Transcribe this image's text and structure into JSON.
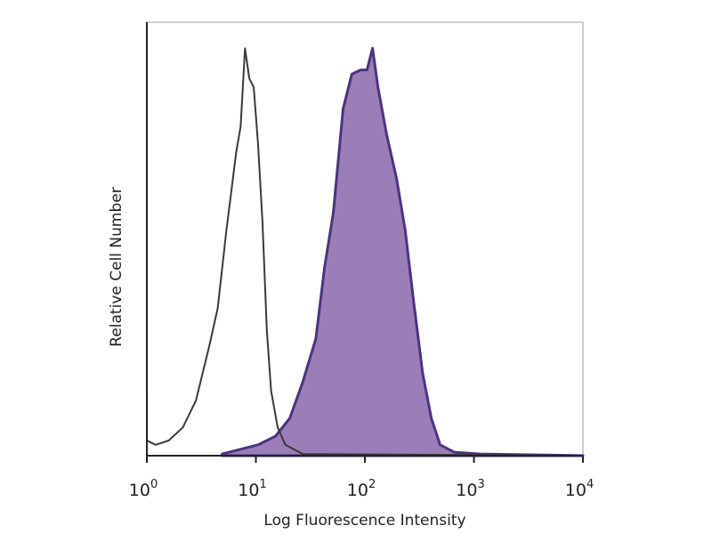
{
  "chart_data": {
    "type": "area",
    "title": "",
    "xlabel": "Log Fluorescence Intensity",
    "ylabel": "Relative Cell Number",
    "x_scale": "log",
    "xlim": [
      1,
      10000
    ],
    "ylim": [
      0,
      100
    ],
    "grid": false,
    "x_ticks": [
      {
        "base": "10",
        "exp": "0",
        "value": 1
      },
      {
        "base": "10",
        "exp": "1",
        "value": 10
      },
      {
        "base": "10",
        "exp": "2",
        "value": 100
      },
      {
        "base": "10",
        "exp": "3",
        "value": 1000
      },
      {
        "base": "10",
        "exp": "4",
        "value": 10000
      }
    ],
    "series": [
      {
        "style": "outline",
        "color": "#3a3a3a",
        "x_log10": [
          0,
          0.001,
          0.08,
          0.2,
          0.33,
          0.45,
          0.57,
          0.65,
          0.73,
          0.82,
          0.86,
          0.9,
          0.94,
          0.98,
          1.02,
          1.06,
          1.1,
          1.14,
          1.2,
          1.27,
          1.43,
          4
        ],
        "y": [
          18,
          3.5,
          2.5,
          3.5,
          6.5,
          12.7,
          25,
          34,
          52,
          70,
          76,
          94,
          87,
          85,
          72,
          54,
          29,
          15,
          6.5,
          2.5,
          0.4,
          0
        ]
      },
      {
        "style": "filled",
        "color": "#4b3480",
        "fill": "#9b7db8",
        "x_log10": [
          0.69,
          1.02,
          1.18,
          1.31,
          1.43,
          1.55,
          1.63,
          1.71,
          1.8,
          1.88,
          1.96,
          2.02,
          2.07,
          2.12,
          2.2,
          2.29,
          2.37,
          2.45,
          2.53,
          2.61,
          2.69,
          2.82,
          3.06,
          4
        ],
        "y": [
          0.4,
          2.5,
          4.5,
          8.6,
          17,
          27,
          43.5,
          56,
          80,
          88,
          89,
          89,
          94,
          85,
          74,
          64,
          52,
          35,
          19,
          8.6,
          2.5,
          0.8,
          0.4,
          0
        ]
      }
    ]
  }
}
